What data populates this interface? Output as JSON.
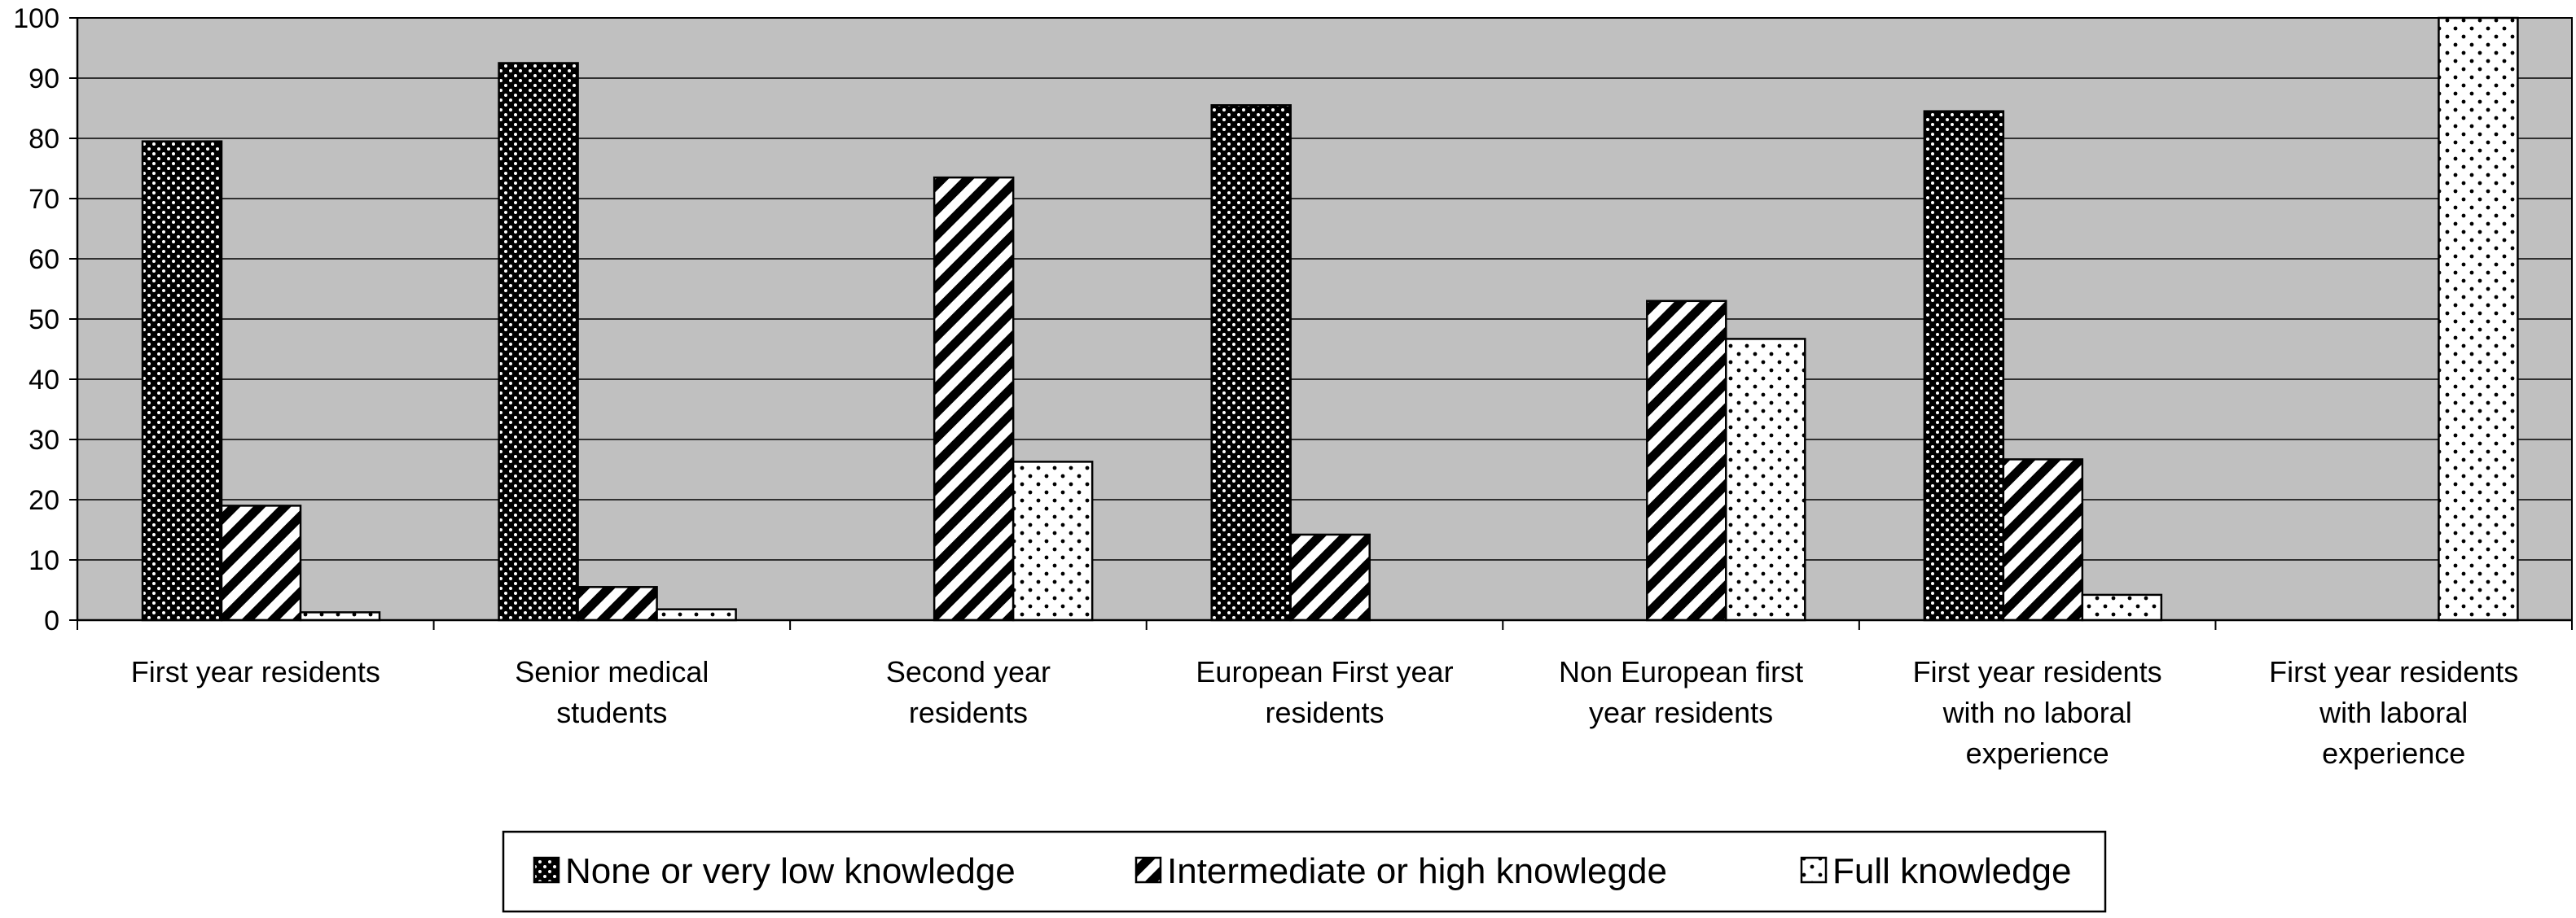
{
  "chart_data": {
    "type": "bar",
    "title": "",
    "xlabel": "",
    "ylabel": "",
    "ylim": [
      0,
      100
    ],
    "yticks": [
      0,
      10,
      20,
      30,
      40,
      50,
      60,
      70,
      80,
      90,
      100
    ],
    "grid": true,
    "legend_position": "bottom",
    "plot_background": "#c0c0c0",
    "categories": [
      [
        "First year residents"
      ],
      [
        "Senior medical",
        "students"
      ],
      [
        "Second year",
        "residents"
      ],
      [
        "European First year",
        "residents"
      ],
      [
        "Non European first",
        "year residents"
      ],
      [
        "First year residents",
        "with no laboral",
        "experience"
      ],
      [
        "First year residents",
        "with laboral",
        "experience"
      ]
    ],
    "series": [
      {
        "name": "None or very low knowledge",
        "pattern": "dark-dots",
        "values": [
          79.5,
          92.5,
          0,
          85.5,
          0,
          84.5,
          0
        ]
      },
      {
        "name": "Intermediate or high knowlegde",
        "pattern": "diagonal-stripes",
        "values": [
          19,
          5.5,
          73.5,
          14.2,
          53,
          26.7,
          0
        ]
      },
      {
        "name": "Full knowledge",
        "pattern": "light-dots",
        "values": [
          1.3,
          1.8,
          26.3,
          0,
          46.7,
          4.2,
          100
        ]
      }
    ]
  }
}
